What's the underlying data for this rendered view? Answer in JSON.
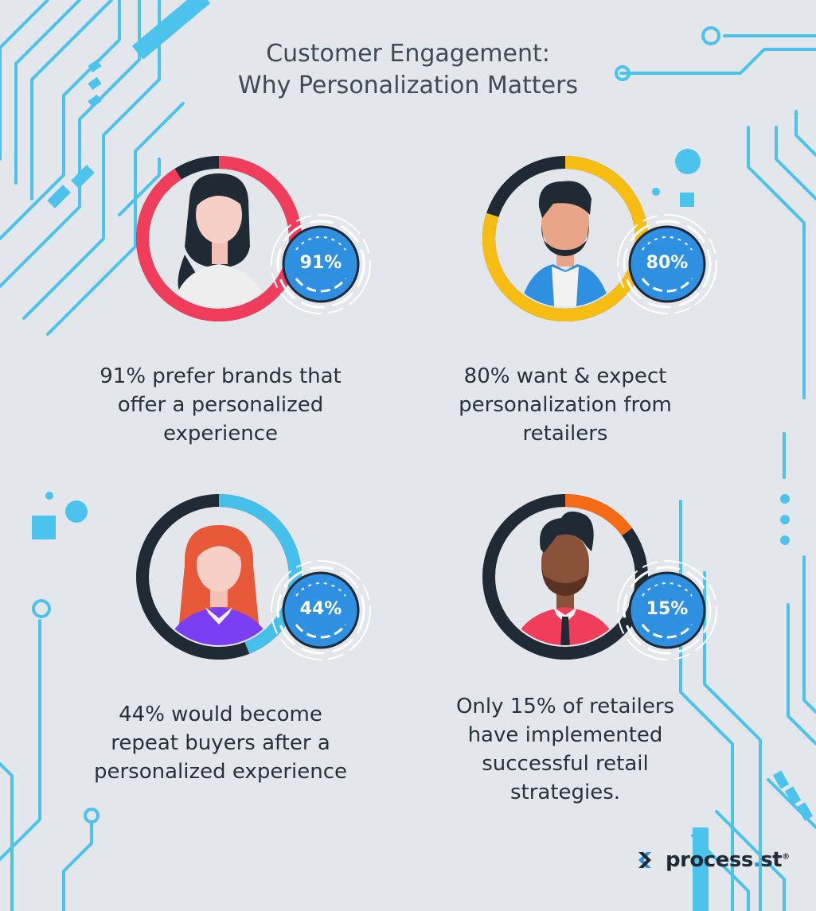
{
  "title": {
    "line1": "Customer Engagement:",
    "line2": "Why Personalization Matters"
  },
  "colors": {
    "background": "#e3e7eb",
    "circuit": "#4cc3ec",
    "badge": "#2f8fe0",
    "dark": "#1f2a35"
  },
  "stats": [
    {
      "percent_label": "91%",
      "value": 91,
      "ring_color": "#f03d5c",
      "lines": [
        "91% prefer brands that",
        "offer a personalized",
        "experience"
      ]
    },
    {
      "percent_label": "80%",
      "value": 80,
      "ring_color": "#f8bd12",
      "lines": [
        "80% want & expect",
        "personalization from",
        "retailers"
      ]
    },
    {
      "percent_label": "44%",
      "value": 44,
      "ring_color": "#45c0ea",
      "lines": [
        "44% would become",
        "repeat buyers after a",
        "personalized experience"
      ]
    },
    {
      "percent_label": "15%",
      "value": 15,
      "ring_color": "#f56a14",
      "lines": [
        "Only 15% of retailers",
        "have implemented",
        "successful retail",
        "strategies."
      ]
    }
  ],
  "logo": {
    "name": "process",
    "dot": ".",
    "suffix": "st",
    "mark": "®"
  }
}
